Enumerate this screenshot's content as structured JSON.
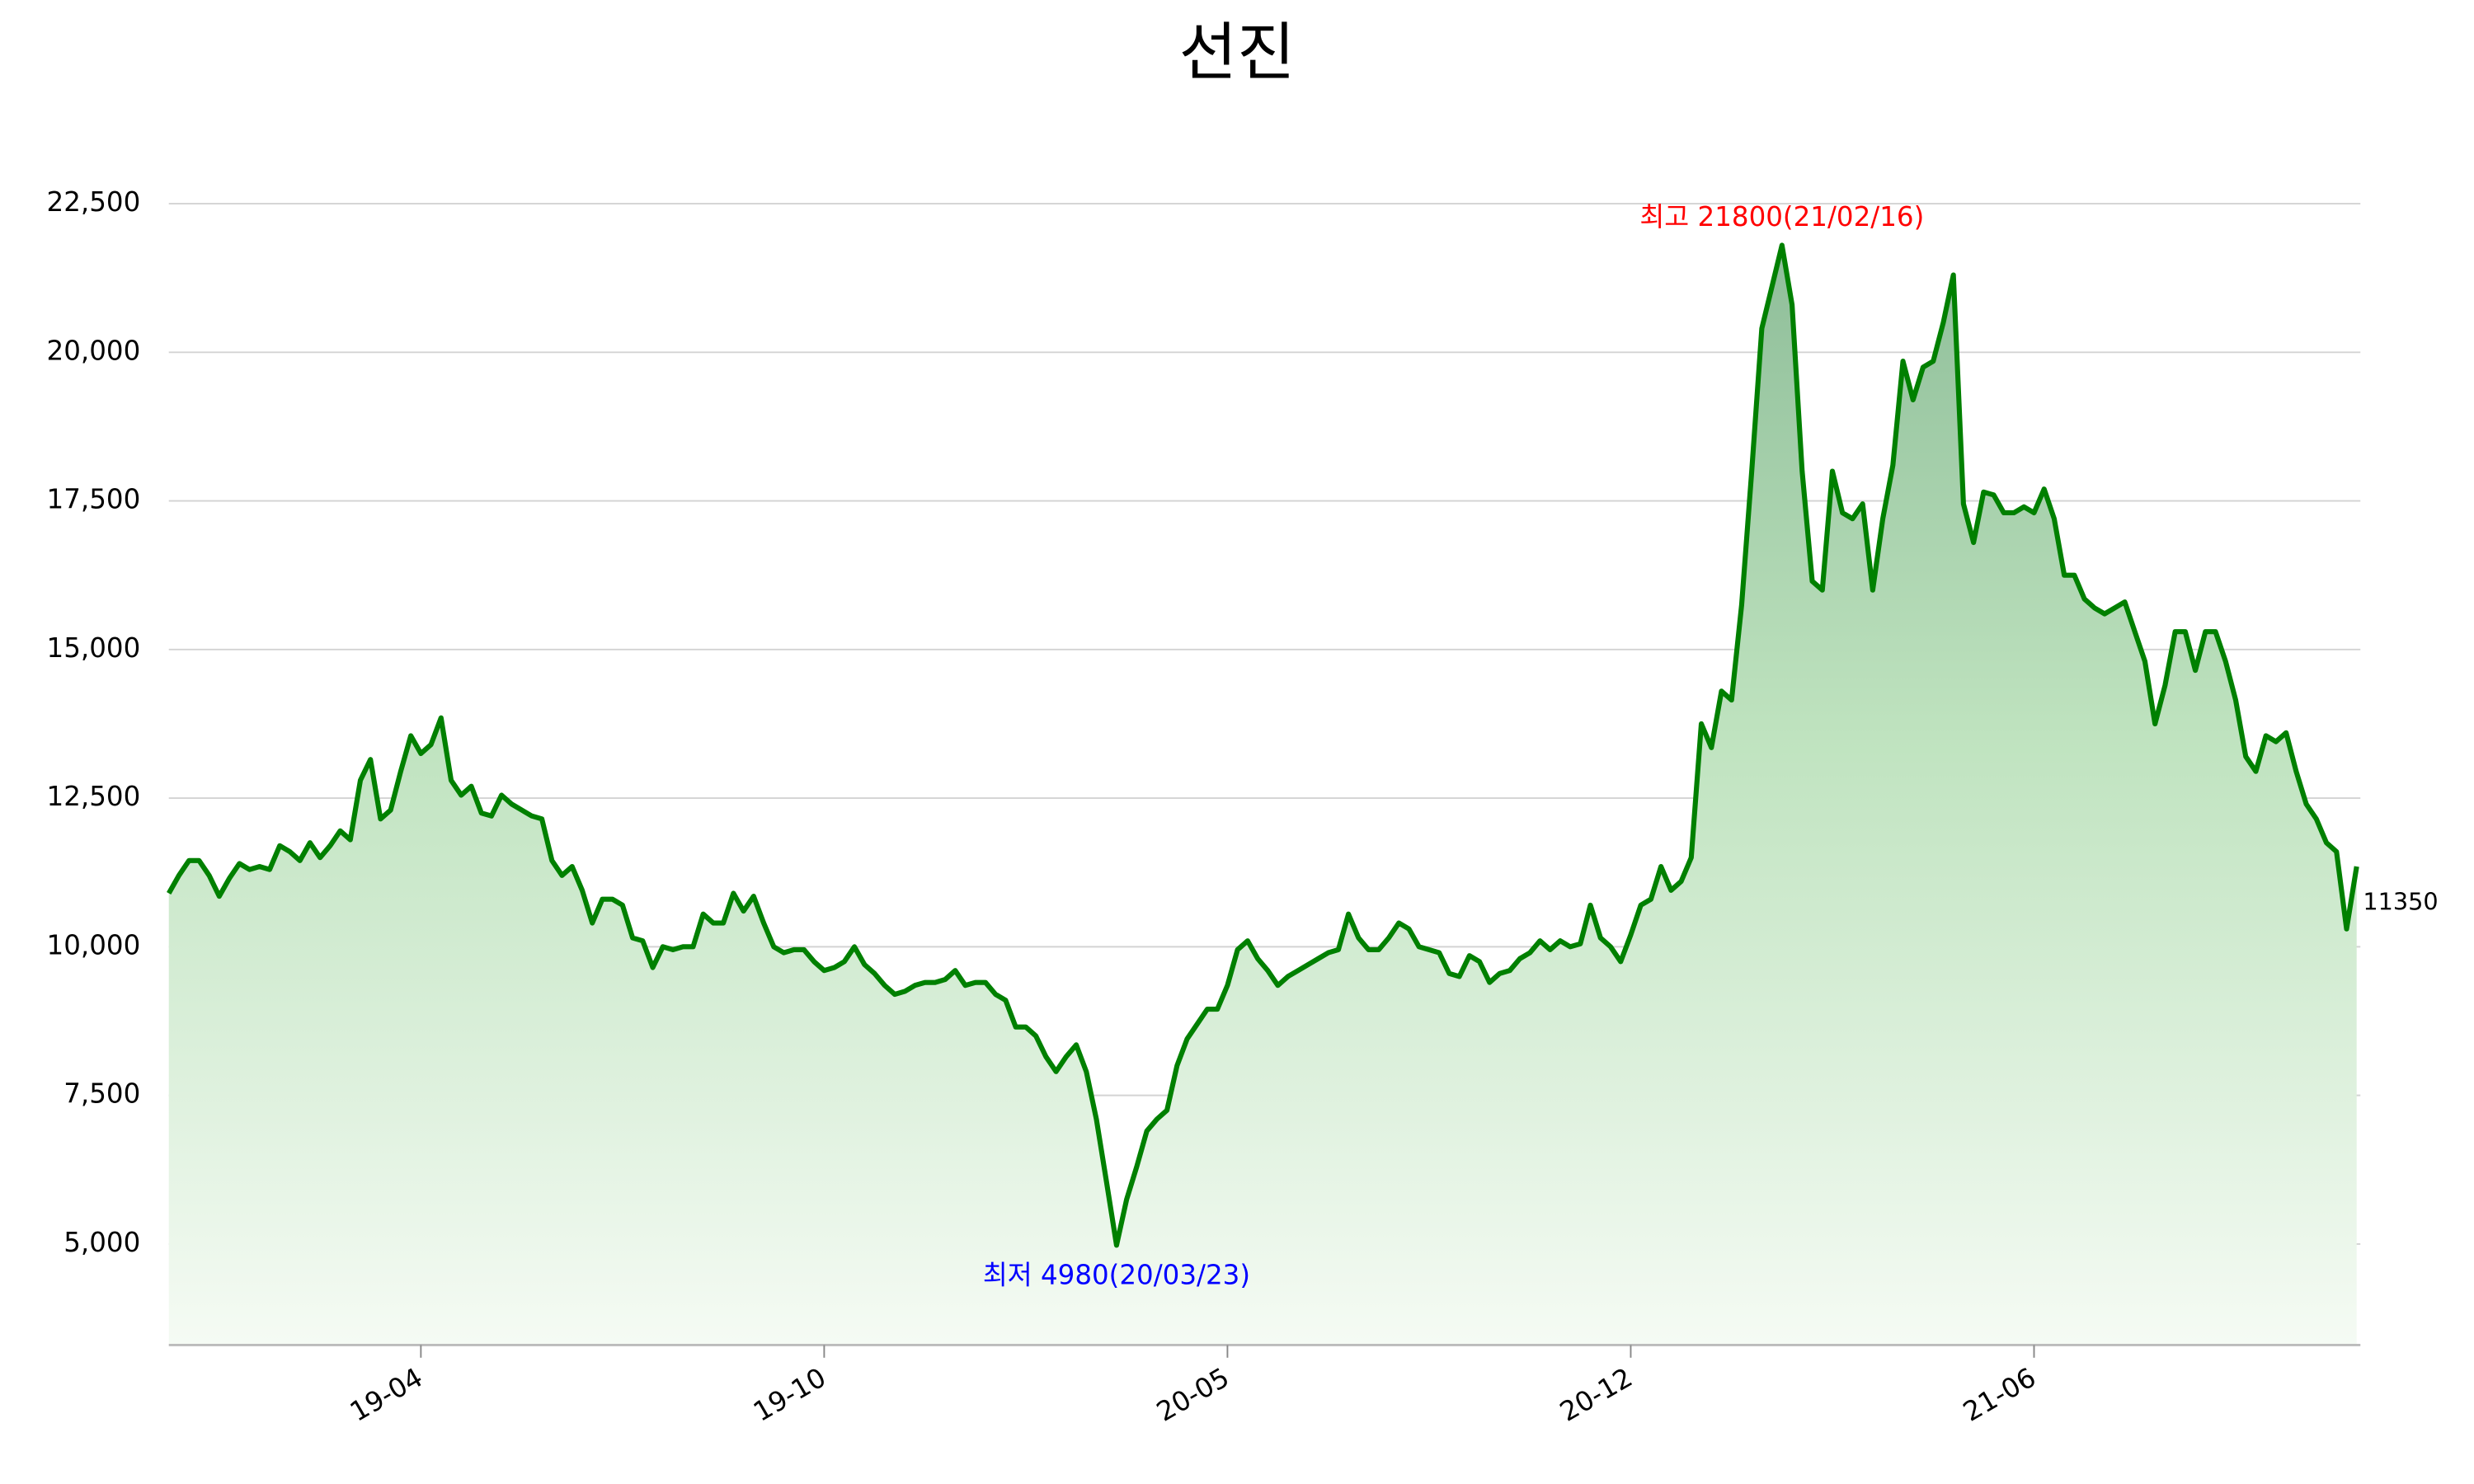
{
  "chart_data": {
    "type": "area",
    "title": "선진",
    "color": "#008000",
    "categories": [
      null,
      null,
      null,
      null,
      null,
      null,
      null,
      null,
      null,
      null,
      null,
      null,
      null,
      null,
      null,
      null,
      null,
      null,
      null,
      null,
      null,
      null,
      null,
      null,
      null,
      "19-04",
      null,
      null,
      null,
      null,
      null,
      null,
      null,
      null,
      null,
      null,
      null,
      null,
      null,
      null,
      null,
      null,
      null,
      null,
      null,
      null,
      null,
      null,
      null,
      null,
      null,
      null,
      null,
      null,
      null,
      null,
      null,
      null,
      null,
      null,
      null,
      null,
      null,
      null,
      null,
      "19-10",
      null,
      null,
      null,
      null,
      null,
      null,
      null,
      null,
      null,
      null,
      null,
      null,
      null,
      null,
      null,
      null,
      null,
      null,
      null,
      null,
      null,
      null,
      null,
      null,
      null,
      null,
      null,
      null,
      null,
      null,
      null,
      null,
      null,
      null,
      null,
      null,
      null,
      null,
      null,
      "20-05",
      null,
      null,
      null,
      null,
      null,
      null,
      null,
      null,
      null,
      null,
      null,
      null,
      null,
      null,
      null,
      null,
      null,
      null,
      null,
      null,
      null,
      null,
      null,
      null,
      null,
      null,
      null,
      null,
      null,
      null,
      null,
      null,
      null,
      null,
      null,
      null,
      null,
      null,
      null,
      "20-12",
      null,
      null,
      null,
      null,
      null,
      null,
      null,
      null,
      null,
      null,
      null,
      null,
      null,
      null,
      null,
      null,
      null,
      null,
      null,
      null,
      null,
      null,
      null,
      null,
      null,
      null,
      null,
      null,
      null,
      null,
      null,
      null,
      null,
      null,
      null,
      null,
      null,
      null,
      null,
      "21-06",
      null,
      null,
      null,
      null,
      null,
      null,
      null,
      null,
      null,
      null,
      null,
      null,
      null,
      null,
      null,
      null,
      null,
      null,
      null,
      null,
      null,
      null,
      null,
      null,
      null,
      null,
      null,
      null,
      null,
      null,
      null,
      null
    ],
    "values": [
      10900,
      11200,
      11450,
      11450,
      11200,
      10850,
      11150,
      11400,
      11300,
      11350,
      11300,
      11700,
      11600,
      11450,
      11750,
      11500,
      11700,
      11950,
      11800,
      12800,
      13150,
      12150,
      12300,
      12950,
      13550,
      13250,
      13400,
      13850,
      12800,
      12550,
      12700,
      12250,
      12200,
      12550,
      12400,
      12300,
      12200,
      12150,
      11450,
      11200,
      11350,
      10950,
      10400,
      10800,
      10800,
      10700,
      10150,
      10100,
      9650,
      10000,
      9950,
      10000,
      10000,
      10550,
      10400,
      10400,
      10900,
      10600,
      10850,
      10400,
      10000,
      9900,
      9950,
      9950,
      9750,
      9600,
      9650,
      9750,
      10000,
      9700,
      9550,
      9350,
      9200,
      9250,
      9350,
      9400,
      9400,
      9450,
      9600,
      9350,
      9400,
      9400,
      9200,
      9100,
      8650,
      8650,
      8500,
      8150,
      7900,
      8150,
      8350,
      7900,
      7100,
      6050,
      4980,
      5750,
      6300,
      6900,
      7100,
      7250,
      8000,
      8450,
      8700,
      8950,
      8950,
      9350,
      9950,
      10100,
      9800,
      9600,
      9350,
      9500,
      9600,
      9700,
      9800,
      9900,
      9950,
      10550,
      10150,
      9950,
      9950,
      10150,
      10400,
      10300,
      10000,
      9950,
      9900,
      9550,
      9500,
      9850,
      9750,
      9400,
      9550,
      9600,
      9800,
      9900,
      10100,
      9950,
      10100,
      10000,
      10050,
      10700,
      10150,
      10000,
      9750,
      10200,
      10700,
      10800,
      11350,
      10950,
      11100,
      11500,
      13750,
      13350,
      14300,
      14150,
      15750,
      18000,
      20400,
      21100,
      21800,
      20800,
      18000,
      16150,
      16000,
      18000,
      17300,
      17200,
      17450,
      16000,
      17200,
      18100,
      19850,
      19200,
      19750,
      19850,
      20500,
      21300,
      17450,
      16800,
      17650,
      17600,
      17300,
      17300,
      17400,
      17300,
      17700,
      17200,
      16250,
      16250,
      15850,
      15700,
      15600,
      15700,
      15800,
      15300,
      14800,
      13750,
      14400,
      15300,
      15300,
      14650,
      15300,
      15300,
      14800,
      14150,
      13200,
      12950,
      13550,
      13450,
      13600,
      12950,
      12400,
      12150,
      11750,
      11600,
      10300,
      11350
    ],
    "ylim": [
      3300,
      23500
    ],
    "yticks": [
      {
        "value": 5000,
        "label": "5,000"
      },
      {
        "value": 7500,
        "label": "7,500"
      },
      {
        "value": 10000,
        "label": "10,000"
      },
      {
        "value": 12500,
        "label": "12,500"
      },
      {
        "value": 15000,
        "label": "15,000"
      },
      {
        "value": 17500,
        "label": "17,500"
      },
      {
        "value": 20000,
        "label": "20,000"
      },
      {
        "value": 22500,
        "label": "22,500"
      }
    ],
    "grid": true,
    "annotations": [
      {
        "text": "최고 21800(21/02/16)",
        "color": "#ff0000",
        "at": "max"
      },
      {
        "text": "최저 4980(20/03/23)",
        "color": "#0000ff",
        "at": "min"
      }
    ]
  }
}
